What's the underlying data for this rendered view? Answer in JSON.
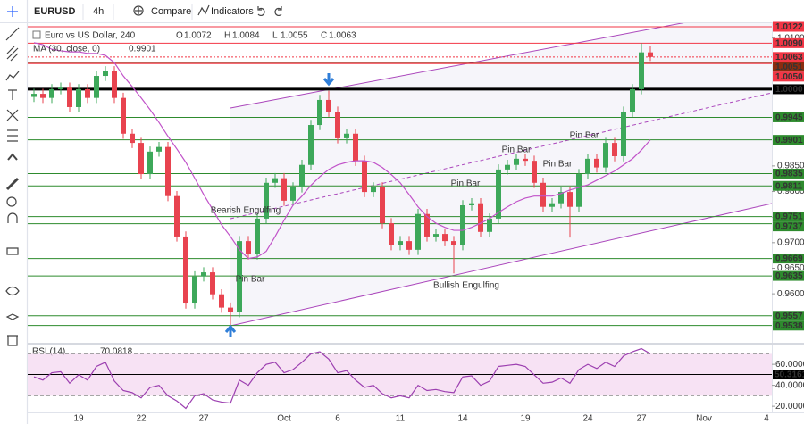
{
  "toolbar": {
    "symbol": "EURUSD",
    "interval": "4h",
    "compare": "Compare",
    "indicators": "Indicators"
  },
  "chart_data": [
    {
      "type": "candlestick",
      "title": "Euro vs US Dollar, 240",
      "ohlc_labels": [
        "O",
        "H",
        "L",
        "C"
      ],
      "categories": [
        null,
        null,
        null,
        null,
        null,
        "19",
        null,
        null,
        null,
        null,
        null,
        null,
        "22",
        null,
        null,
        null,
        null,
        null,
        null,
        "27",
        null,
        null,
        null,
        null,
        null,
        null,
        null,
        null,
        "Oct",
        null,
        null,
        null,
        null,
        null,
        "6",
        null,
        null,
        null,
        null,
        null,
        null,
        "11",
        null,
        null,
        null,
        null,
        null,
        null,
        "14",
        null,
        null,
        null,
        null,
        null,
        null,
        "19",
        null,
        null,
        null,
        null,
        null,
        null,
        "24",
        null,
        null,
        null,
        null,
        null,
        "27",
        null,
        null,
        null,
        null,
        null,
        null,
        "Nov",
        null,
        null,
        null,
        null,
        null,
        null,
        "4"
      ],
      "open": [
        0.9985,
        0.9991,
        0.9983,
        1.0,
        1.0003,
        0.9965,
        1.0,
        0.9983,
        1.0026,
        1.0035,
        0.9983,
        0.9913,
        0.9895,
        0.9834,
        0.9878,
        0.9887,
        0.9791,
        0.9712,
        0.9581,
        0.9634,
        0.9642,
        0.9599,
        0.9573,
        0.9564,
        0.9703,
        0.9677,
        0.9747,
        0.9817,
        0.9826,
        0.9782,
        0.9808,
        0.9852,
        0.993,
        0.9979,
        0.9956,
        0.9904,
        0.9913,
        0.986,
        0.9799,
        0.9808,
        0.9738,
        0.9695,
        0.9703,
        0.9686,
        0.9756,
        0.9712,
        0.9717,
        0.9703,
        0.9695,
        0.9773,
        0.9777,
        0.9721,
        0.9747,
        0.9843,
        0.9852,
        0.9864,
        0.986,
        0.9817,
        0.977,
        0.9777,
        0.9799,
        0.977,
        0.9834,
        0.9864,
        0.9847,
        0.9895,
        0.9869,
        0.9956,
        1.0,
        1.0072,
        null,
        null,
        null,
        null,
        null,
        null,
        null,
        null,
        null,
        null,
        null,
        null,
        null
      ],
      "high": [
        1.0001,
        1.0001,
        1.001,
        1.0013,
        1.0013,
        1.001,
        1.001,
        1.0036,
        1.0045,
        1.0045,
        0.9993,
        0.9923,
        0.9905,
        0.9888,
        0.9897,
        0.9897,
        0.9801,
        0.9722,
        0.9644,
        0.9652,
        0.9652,
        0.9609,
        0.9583,
        0.9713,
        0.9713,
        0.9757,
        0.9827,
        0.9836,
        0.9836,
        0.9818,
        0.9862,
        0.994,
        0.9989,
        0.9997,
        0.9966,
        0.9923,
        0.9923,
        0.987,
        0.9818,
        0.9818,
        0.9748,
        0.9713,
        0.9713,
        0.9766,
        0.9766,
        0.9727,
        0.9727,
        0.9713,
        0.9783,
        0.9787,
        0.9787,
        0.9757,
        0.9853,
        0.9862,
        0.9874,
        0.9874,
        0.987,
        0.9827,
        0.9787,
        0.9809,
        0.9809,
        0.9844,
        0.9874,
        0.9874,
        0.9905,
        0.9905,
        0.9966,
        1.001,
        1.009,
        1.0084,
        null,
        null,
        null,
        null,
        null,
        null,
        null,
        null,
        null,
        null,
        null,
        null,
        null
      ],
      "low": [
        0.9975,
        0.9973,
        0.9973,
        0.999,
        0.9955,
        0.9955,
        0.9973,
        0.9973,
        1.0016,
        0.9973,
        0.9903,
        0.9885,
        0.9824,
        0.9824,
        0.9868,
        0.9781,
        0.9702,
        0.9571,
        0.9571,
        0.9624,
        0.9589,
        0.9563,
        0.9538,
        0.9554,
        0.9667,
        0.9667,
        0.9737,
        0.9807,
        0.9772,
        0.9772,
        0.9798,
        0.9842,
        0.992,
        0.9946,
        0.9894,
        0.9894,
        0.985,
        0.9789,
        0.9789,
        0.9728,
        0.9685,
        0.9685,
        0.9676,
        0.9676,
        0.9702,
        0.9702,
        0.9693,
        0.964,
        0.9685,
        0.9763,
        0.9711,
        0.9711,
        0.9737,
        0.9833,
        0.9842,
        0.985,
        0.9807,
        0.976,
        0.976,
        0.9767,
        0.971,
        0.976,
        0.9824,
        0.9837,
        0.9837,
        0.9859,
        0.9859,
        0.9946,
        0.999,
        1.0055,
        null,
        null,
        null,
        null,
        null,
        null,
        null,
        null,
        null,
        null,
        null,
        null,
        null
      ],
      "close": [
        0.9991,
        0.9983,
        1.0,
        1.0003,
        0.9965,
        1.0,
        0.9983,
        1.0026,
        1.0035,
        0.9983,
        0.9913,
        0.9895,
        0.9834,
        0.9878,
        0.9887,
        0.9791,
        0.9712,
        0.9581,
        0.9634,
        0.9642,
        0.9599,
        0.9573,
        0.9564,
        0.9703,
        0.9677,
        0.9747,
        0.9817,
        0.9826,
        0.9782,
        0.9808,
        0.9852,
        0.993,
        0.9979,
        0.9956,
        0.9904,
        0.9913,
        0.986,
        0.9799,
        0.9808,
        0.9738,
        0.9695,
        0.9703,
        0.9686,
        0.9756,
        0.9712,
        0.9717,
        0.9703,
        0.9695,
        0.9773,
        0.9777,
        0.9721,
        0.9747,
        0.9843,
        0.9852,
        0.9864,
        0.986,
        0.9817,
        0.977,
        0.9777,
        0.9799,
        0.977,
        0.9834,
        0.9864,
        0.9847,
        0.9895,
        0.9869,
        0.9956,
        1.0,
        1.0072,
        1.0063,
        null,
        null,
        null,
        null,
        null,
        null,
        null,
        null,
        null,
        null,
        null,
        null,
        null
      ],
      "up_color": "#3da85a",
      "down_color": "#e8434f",
      "overlay": {
        "name": "MA (30, close, 0)",
        "color": "#c153c9",
        "values": [
          1.0091,
          1.0087,
          1.0078,
          1.0075,
          1.0073,
          1.0073,
          1.007,
          1.007,
          1.0066,
          1.0052,
          1.0026,
          1.0005,
          0.9983,
          0.996,
          0.9935,
          0.9908,
          0.9883,
          0.9857,
          0.9826,
          0.9794,
          0.9765,
          0.9735,
          0.9712,
          0.9686,
          0.9669,
          0.9672,
          0.9683,
          0.9712,
          0.9744,
          0.9773,
          0.9791,
          0.9812,
          0.9829,
          0.9843,
          0.9852,
          0.9857,
          0.986,
          0.986,
          0.9857,
          0.9847,
          0.9833,
          0.9817,
          0.9794,
          0.977,
          0.9751,
          0.9738,
          0.973,
          0.9724,
          0.9724,
          0.973,
          0.9738,
          0.9747,
          0.9759,
          0.977,
          0.978,
          0.9787,
          0.9791,
          0.9791,
          0.9791,
          0.9796,
          0.9803,
          0.9808,
          0.9813,
          0.9822,
          0.9831,
          0.984,
          0.9852,
          0.9864,
          0.9881,
          0.9901,
          null,
          null,
          null,
          null,
          null,
          null,
          null,
          null,
          null,
          null,
          null,
          null,
          null
        ]
      },
      "levels": [
        {
          "value": 1.0122,
          "label": "1.0122",
          "color": "#f23645"
        },
        {
          "value": 1.009,
          "label": "1.0090",
          "color": "#f23645"
        },
        {
          "value": 1.0063,
          "label": "1.0063",
          "color": "#f23645",
          "style": "dotted"
        },
        {
          "value": 1.0051,
          "label": "1.0051",
          "color": "#8b2c0f"
        },
        {
          "value": 1.005,
          "label": "1.0050",
          "color": "#f23645"
        },
        {
          "value": 1,
          "label": "1.0000",
          "color": "#000000",
          "width": 3
        },
        {
          "value": 0.9945,
          "label": "0.9945",
          "color": "#2e8b2e"
        },
        {
          "value": 0.9901,
          "label": "0.9901",
          "color": "#2e8b2e"
        },
        {
          "value": 0.9835,
          "label": "0.9835",
          "color": "#2e8b2e"
        },
        {
          "value": 0.9811,
          "label": "0.9811",
          "color": "#2e8b2e"
        },
        {
          "value": 0.9751,
          "label": "0.9751",
          "color": "#2e8b2e"
        },
        {
          "value": 0.9737,
          "label": "0.9737",
          "color": "#2e8b2e"
        },
        {
          "value": 0.9669,
          "label": "0.9669",
          "color": "#2e8b2e"
        },
        {
          "value": 0.9635,
          "label": "0.9635",
          "color": "#2e8b2e"
        },
        {
          "value": 0.9557,
          "label": "0.9557",
          "color": "#2e8b2e"
        },
        {
          "value": 0.9538,
          "label": "0.9538",
          "color": "#2e8b2e"
        }
      ],
      "annotations": [
        "Pin Bar",
        "Bearish Engulfing",
        "Pin Bar",
        "Bullish Engulfing",
        "Pin Bar",
        "Pin Bar",
        "Pin Bar"
      ],
      "ylim": [
        0.9506,
        1.0129
      ],
      "yticks": [
        {
          "value": 0.96,
          "label": "0.9600"
        },
        {
          "value": 0.965,
          "label": "0.9650"
        },
        {
          "value": 0.97,
          "label": "0.9700"
        },
        {
          "value": 0.975,
          "label": "0.9750"
        },
        {
          "value": 0.98,
          "label": "0.9800"
        },
        {
          "value": 0.985,
          "label": "0.9850"
        },
        {
          "value": 1.01,
          "label": "1.0100"
        }
      ],
      "grid": false
    },
    {
      "type": "line",
      "name": "RSI (14)",
      "color": "#9c3fb0",
      "values": [
        48,
        45,
        52,
        53,
        42,
        50,
        45,
        58,
        62,
        44,
        35,
        33,
        28,
        38,
        40,
        30,
        25,
        18,
        30,
        32,
        26,
        24,
        23,
        45,
        40,
        52,
        60,
        62,
        52,
        55,
        62,
        70,
        72,
        65,
        52,
        54,
        45,
        38,
        40,
        32,
        28,
        30,
        28,
        40,
        35,
        36,
        34,
        33,
        48,
        49,
        40,
        44,
        58,
        59,
        60,
        58,
        50,
        42,
        43,
        47,
        42,
        55,
        60,
        56,
        62,
        58,
        68,
        72,
        75,
        70.0818,
        null,
        null,
        null,
        null,
        null,
        null,
        null,
        null,
        null,
        null,
        null,
        null,
        null
      ],
      "band": [
        30,
        70
      ],
      "band_color": "#f3d6ef",
      "level": {
        "value": 50.3161,
        "label": "50.3161",
        "color": "#000000"
      },
      "ylim": [
        15,
        78
      ],
      "yticks": [
        {
          "value": 20,
          "label": "20.0000"
        },
        {
          "value": 40,
          "label": "40.0000"
        },
        {
          "value": 60,
          "label": "60.0000"
        }
      ]
    }
  ]
}
